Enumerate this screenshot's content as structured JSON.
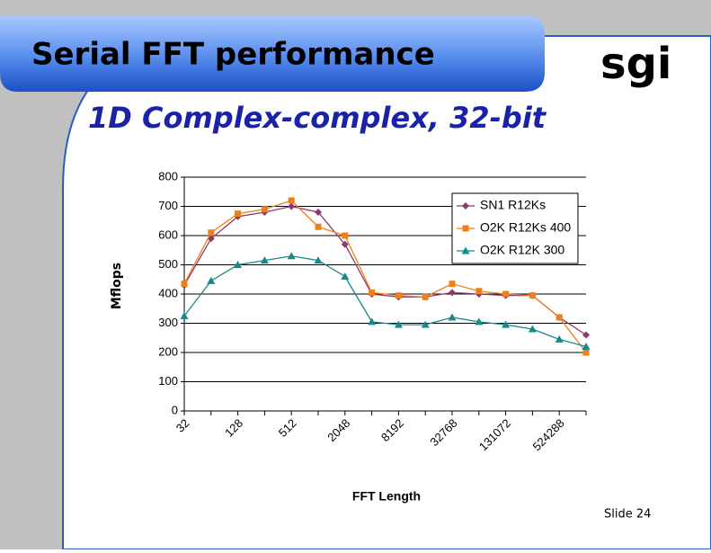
{
  "title": "Serial FFT performance",
  "logo": "sgi",
  "subtitle": "1D Complex-complex, 32-bit",
  "footer": "Slide 24",
  "chart_data": {
    "type": "line",
    "x_label": "FFT Length",
    "y_label": "Mflops",
    "categories": [
      "32",
      null,
      "128",
      null,
      "512",
      null,
      "2048",
      null,
      "8192",
      null,
      "32768",
      null,
      "131072",
      null,
      "524288",
      null
    ],
    "series": [
      {
        "name": "SN1 R12Ks",
        "color": "#8b3a6b",
        "marker": "diamond",
        "values": [
          430,
          590,
          665,
          680,
          700,
          680,
          570,
          400,
          390,
          390,
          405,
          400,
          395,
          395,
          320,
          260
        ]
      },
      {
        "name": "O2K R12Ks 400",
        "color": "#f07f1a",
        "marker": "square",
        "values": [
          435,
          610,
          675,
          690,
          720,
          630,
          600,
          405,
          395,
          390,
          435,
          410,
          400,
          395,
          320,
          200
        ]
      },
      {
        "name": "O2K R12K 300",
        "color": "#17898a",
        "marker": "triangle",
        "values": [
          325,
          445,
          500,
          515,
          530,
          515,
          460,
          305,
          295,
          295,
          320,
          305,
          295,
          280,
          245,
          220
        ]
      }
    ],
    "ylim": [
      0,
      800
    ],
    "yticks": [
      0,
      100,
      200,
      300,
      400,
      500,
      600,
      700,
      800
    ],
    "grid": true,
    "legend": "upper right"
  }
}
